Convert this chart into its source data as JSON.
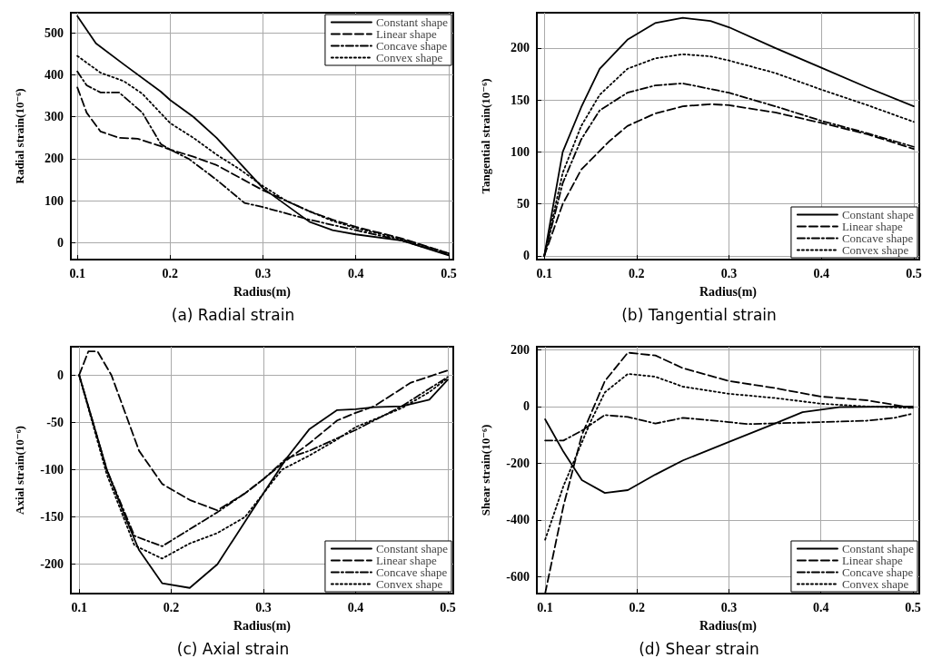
{
  "chart_data": [
    {
      "type": "line",
      "title": "(a) Radial strain",
      "xlabel": "Radius(m)",
      "ylabel": "Radial strain(10⁻⁶)",
      "xlim": [
        0.093,
        0.505
      ],
      "xticks": [
        0.1,
        0.2,
        0.3,
        0.4,
        0.5
      ],
      "ylim": [
        -40,
        548
      ],
      "yticks": [
        0,
        100,
        200,
        300,
        400,
        500
      ],
      "grid": true,
      "legend": "top right",
      "series": [
        {
          "name": "Constant shape",
          "color": "#000000",
          "line_style": "solid",
          "x": [
            0.1,
            0.12,
            0.15,
            0.19,
            0.2,
            0.225,
            0.25,
            0.275,
            0.3,
            0.325,
            0.35,
            0.375,
            0.4,
            0.45,
            0.5
          ],
          "values": [
            540,
            475,
            425,
            360,
            340,
            300,
            250,
            190,
            130,
            90,
            50,
            30,
            20,
            5,
            -30
          ]
        },
        {
          "name": "Linear shape",
          "color": "#000000",
          "line_style": "dashed",
          "x": [
            0.1,
            0.11,
            0.125,
            0.145,
            0.165,
            0.19,
            0.2,
            0.225,
            0.25,
            0.275,
            0.3,
            0.325,
            0.35,
            0.375,
            0.4,
            0.45,
            0.5
          ],
          "values": [
            370,
            310,
            265,
            250,
            248,
            230,
            222,
            205,
            185,
            155,
            125,
            100,
            75,
            55,
            38,
            10,
            -25
          ]
        },
        {
          "name": "Concave shape",
          "color": "#000000",
          "line_style": "dashdot",
          "x": [
            0.1,
            0.11,
            0.125,
            0.145,
            0.17,
            0.19,
            0.2,
            0.22,
            0.25,
            0.28,
            0.3,
            0.35,
            0.4,
            0.45,
            0.5
          ],
          "values": [
            408,
            375,
            358,
            358,
            310,
            235,
            222,
            200,
            150,
            95,
            85,
            55,
            30,
            5,
            -28
          ]
        },
        {
          "name": "Convex shape",
          "color": "#000000",
          "line_style": "dotted",
          "x": [
            0.1,
            0.125,
            0.15,
            0.17,
            0.2,
            0.225,
            0.25,
            0.275,
            0.3,
            0.325,
            0.35,
            0.375,
            0.4,
            0.45,
            0.5
          ],
          "values": [
            445,
            405,
            385,
            355,
            285,
            250,
            210,
            175,
            135,
            100,
            75,
            52,
            35,
            8,
            -25
          ]
        }
      ]
    },
    {
      "type": "line",
      "title": "(b) Tangential strain",
      "xlabel": "Radius(m)",
      "ylabel": "Tangential strain(10⁻⁶)",
      "xlim": [
        0.092,
        0.506
      ],
      "xticks": [
        0.1,
        0.2,
        0.3,
        0.4,
        0.5
      ],
      "ylim": [
        -3.5,
        234
      ],
      "yticks": [
        0,
        50,
        100,
        150,
        200
      ],
      "grid": true,
      "legend": "bottom right",
      "series": [
        {
          "name": "Constant shape",
          "color": "#000000",
          "line_style": "solid",
          "x": [
            0.1,
            0.12,
            0.14,
            0.16,
            0.19,
            0.22,
            0.25,
            0.28,
            0.3,
            0.35,
            0.4,
            0.45,
            0.5
          ],
          "values": [
            0,
            100,
            143,
            180,
            208,
            224,
            229,
            226,
            220,
            200,
            181,
            162,
            144
          ]
        },
        {
          "name": "Linear shape",
          "color": "#000000",
          "line_style": "dashed",
          "x": [
            0.1,
            0.12,
            0.14,
            0.17,
            0.19,
            0.22,
            0.25,
            0.28,
            0.3,
            0.35,
            0.4,
            0.45,
            0.5
          ],
          "values": [
            0,
            50,
            83,
            110,
            125,
            137,
            144,
            146,
            145,
            138,
            128,
            117,
            103
          ]
        },
        {
          "name": "Concave shape",
          "color": "#000000",
          "line_style": "dashdot",
          "x": [
            0.1,
            0.12,
            0.14,
            0.16,
            0.19,
            0.22,
            0.25,
            0.3,
            0.35,
            0.4,
            0.45,
            0.5
          ],
          "values": [
            0,
            70,
            112,
            140,
            157,
            164,
            166,
            157,
            144,
            130,
            118,
            105
          ]
        },
        {
          "name": "Convex shape",
          "color": "#000000",
          "line_style": "dotted",
          "x": [
            0.1,
            0.12,
            0.14,
            0.16,
            0.19,
            0.22,
            0.25,
            0.28,
            0.3,
            0.35,
            0.4,
            0.45,
            0.5
          ],
          "values": [
            0,
            80,
            125,
            155,
            180,
            190,
            194,
            192,
            188,
            176,
            160,
            145,
            129
          ]
        }
      ]
    },
    {
      "type": "line",
      "title": "(c) Axial strain",
      "xlabel": "Radius(m)",
      "ylabel": "Axial strain(10⁻⁶)",
      "xlim": [
        0.091,
        0.506
      ],
      "xticks": [
        0.1,
        0.2,
        0.3,
        0.4,
        0.5
      ],
      "ylim": [
        -231,
        30
      ],
      "yticks": [
        -200,
        -150,
        -100,
        -50,
        0
      ],
      "grid": true,
      "legend": "bottom right",
      "series": [
        {
          "name": "Constant shape",
          "color": "#000000",
          "line_style": "solid",
          "x": [
            0.1,
            0.13,
            0.15,
            0.165,
            0.19,
            0.22,
            0.25,
            0.28,
            0.3,
            0.325,
            0.35,
            0.38,
            0.4,
            0.42,
            0.45,
            0.48,
            0.5
          ],
          "values": [
            0,
            -100,
            -150,
            -185,
            -220,
            -225,
            -200,
            -155,
            -125,
            -88,
            -57,
            -37,
            -36,
            -34,
            -33,
            -26,
            -5
          ]
        },
        {
          "name": "Linear shape",
          "color": "#000000",
          "line_style": "dashed",
          "x": [
            0.1,
            0.11,
            0.12,
            0.135,
            0.15,
            0.165,
            0.19,
            0.22,
            0.25,
            0.28,
            0.3,
            0.325,
            0.35,
            0.38,
            0.4,
            0.42,
            0.46,
            0.5
          ],
          "values": [
            0,
            25,
            25,
            0,
            -40,
            -80,
            -115,
            -132,
            -143,
            -125,
            -110,
            -90,
            -72,
            -48,
            -40,
            -33,
            -8,
            5
          ]
        },
        {
          "name": "Concave shape",
          "color": "#000000",
          "line_style": "dashdot",
          "x": [
            0.1,
            0.13,
            0.16,
            0.19,
            0.22,
            0.25,
            0.28,
            0.3,
            0.325,
            0.35,
            0.4,
            0.45,
            0.5
          ],
          "values": [
            0,
            -100,
            -170,
            -181,
            -163,
            -145,
            -125,
            -110,
            -88,
            -80,
            -58,
            -33,
            -2
          ]
        },
        {
          "name": "Convex shape",
          "color": "#000000",
          "line_style": "dotted",
          "x": [
            0.1,
            0.13,
            0.16,
            0.19,
            0.22,
            0.25,
            0.28,
            0.3,
            0.32,
            0.35,
            0.38,
            0.4,
            0.45,
            0.48,
            0.5
          ],
          "values": [
            0,
            -105,
            -180,
            -194,
            -178,
            -167,
            -150,
            -125,
            -100,
            -85,
            -68,
            -55,
            -35,
            -18,
            -3
          ]
        }
      ]
    },
    {
      "type": "line",
      "title": "(d) Shear strain",
      "xlabel": "Radius(m)",
      "ylabel": "Shear strain(10⁻⁶)",
      "xlim": [
        0.091,
        0.507
      ],
      "xticks": [
        0.1,
        0.2,
        0.3,
        0.4,
        0.5
      ],
      "ylim": [
        -660,
        211
      ],
      "yticks": [
        -600,
        -400,
        -200,
        0,
        200
      ],
      "grid": true,
      "legend": "bottom right",
      "series": [
        {
          "name": "Constant shape",
          "color": "#000000",
          "line_style": "solid",
          "x": [
            0.1,
            0.12,
            0.14,
            0.165,
            0.19,
            0.22,
            0.25,
            0.3,
            0.35,
            0.38,
            0.42,
            0.5
          ],
          "values": [
            -45,
            -160,
            -260,
            -305,
            -295,
            -240,
            -190,
            -125,
            -60,
            -20,
            -2,
            0
          ]
        },
        {
          "name": "Linear shape",
          "color": "#000000",
          "line_style": "dashed",
          "x": [
            0.1,
            0.12,
            0.14,
            0.165,
            0.19,
            0.22,
            0.25,
            0.3,
            0.35,
            0.4,
            0.45,
            0.5
          ],
          "values": [
            -660,
            -350,
            -100,
            90,
            190,
            180,
            135,
            90,
            65,
            35,
            22,
            -5
          ]
        },
        {
          "name": "Concave shape",
          "color": "#000000",
          "line_style": "dashdot",
          "x": [
            0.1,
            0.12,
            0.14,
            0.165,
            0.19,
            0.22,
            0.25,
            0.3,
            0.32,
            0.4,
            0.45,
            0.48,
            0.5
          ],
          "values": [
            -120,
            -120,
            -85,
            -30,
            -37,
            -60,
            -40,
            -55,
            -62,
            -55,
            -50,
            -40,
            -25
          ]
        },
        {
          "name": "Convex shape",
          "color": "#000000",
          "line_style": "dotted",
          "x": [
            0.1,
            0.12,
            0.15,
            0.165,
            0.19,
            0.22,
            0.25,
            0.3,
            0.35,
            0.4,
            0.45,
            0.5
          ],
          "values": [
            -470,
            -280,
            -50,
            50,
            115,
            105,
            70,
            45,
            30,
            10,
            0,
            -5
          ]
        }
      ]
    }
  ]
}
